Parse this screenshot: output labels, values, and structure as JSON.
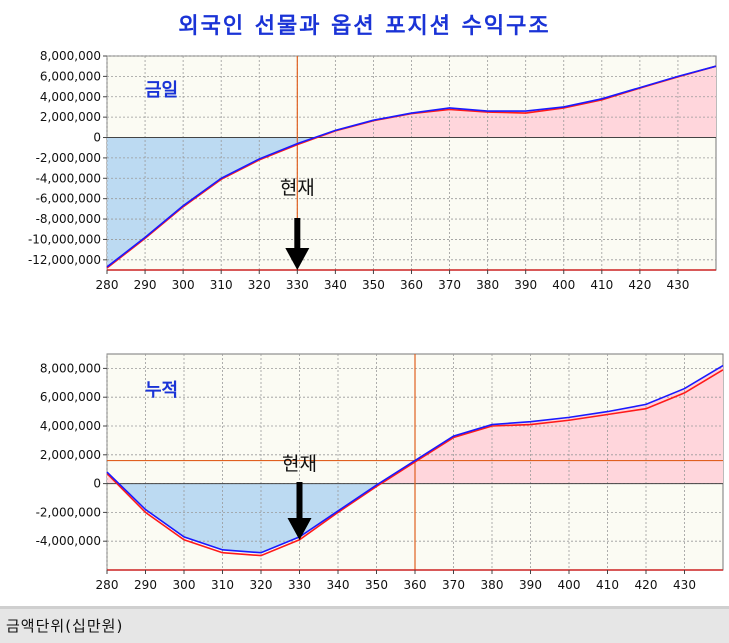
{
  "title": "외국인 선물과 옵션 포지션 수익구조",
  "footer": "금액단위(십만원)",
  "colors": {
    "positive_fill": "#ffd6dc",
    "negative_fill": "#bcdaf2",
    "plot_bg": "#fbfbf3",
    "line_blue": "#1a1aff",
    "line_red": "#ff1a1a",
    "ref_line": "#e06020"
  },
  "chart_data": [
    {
      "type": "area",
      "label": "금일",
      "current_label": "현재",
      "current_x": 330,
      "ref_x": 330,
      "ref_y": null,
      "xlim": [
        280,
        440
      ],
      "ylim": [
        -13000000,
        8000000
      ],
      "xticks": [
        280,
        290,
        300,
        310,
        320,
        330,
        340,
        350,
        360,
        370,
        380,
        390,
        400,
        410,
        420,
        430
      ],
      "yticks": [
        8000000,
        6000000,
        4000000,
        2000000,
        0,
        -2000000,
        -4000000,
        -6000000,
        -8000000,
        -10000000,
        -12000000
      ],
      "series": [
        {
          "color": "blue",
          "x": [
            280,
            290,
            300,
            310,
            320,
            330,
            340,
            350,
            360,
            370,
            380,
            390,
            400,
            410,
            420,
            430,
            440
          ],
          "y": [
            -12700000,
            -9800000,
            -6700000,
            -4000000,
            -2100000,
            -600000,
            700000,
            1700000,
            2400000,
            2900000,
            2600000,
            2600000,
            3000000,
            3800000,
            4900000,
            6000000,
            7000000
          ]
        },
        {
          "color": "red",
          "x": [
            280,
            290,
            300,
            310,
            320,
            330,
            340,
            350,
            360,
            370,
            380,
            390,
            400,
            410,
            420,
            430,
            440
          ],
          "y": [
            -12800000,
            -9900000,
            -6800000,
            -4100000,
            -2200000,
            -700000,
            650000,
            1650000,
            2350000,
            2750000,
            2500000,
            2400000,
            2900000,
            3700000,
            4850000,
            5950000,
            7000000
          ]
        }
      ]
    },
    {
      "type": "area",
      "label": "누적",
      "current_label": "현재",
      "current_x": 330,
      "ref_x": 360,
      "ref_y": 1600000,
      "xlim": [
        280,
        440
      ],
      "ylim": [
        -6000000,
        9000000
      ],
      "xticks": [
        280,
        290,
        300,
        310,
        320,
        330,
        340,
        350,
        360,
        370,
        380,
        390,
        400,
        410,
        420,
        430
      ],
      "yticks": [
        8000000,
        6000000,
        4000000,
        2000000,
        0,
        -2000000,
        -4000000
      ],
      "series": [
        {
          "color": "blue",
          "x": [
            280,
            290,
            300,
            310,
            320,
            330,
            340,
            350,
            360,
            370,
            380,
            390,
            400,
            410,
            420,
            430,
            440
          ],
          "y": [
            800000,
            -1800000,
            -3700000,
            -4600000,
            -4800000,
            -3700000,
            -1900000,
            -100000,
            1600000,
            3300000,
            4100000,
            4300000,
            4600000,
            5000000,
            5500000,
            6600000,
            8200000
          ]
        },
        {
          "color": "red",
          "x": [
            280,
            290,
            300,
            310,
            320,
            330,
            340,
            350,
            360,
            370,
            380,
            390,
            400,
            410,
            420,
            430,
            440
          ],
          "y": [
            700000,
            -2000000,
            -3900000,
            -4800000,
            -5000000,
            -3900000,
            -2000000,
            -200000,
            1500000,
            3200000,
            4000000,
            4100000,
            4400000,
            4800000,
            5200000,
            6300000,
            7900000
          ]
        }
      ]
    }
  ]
}
